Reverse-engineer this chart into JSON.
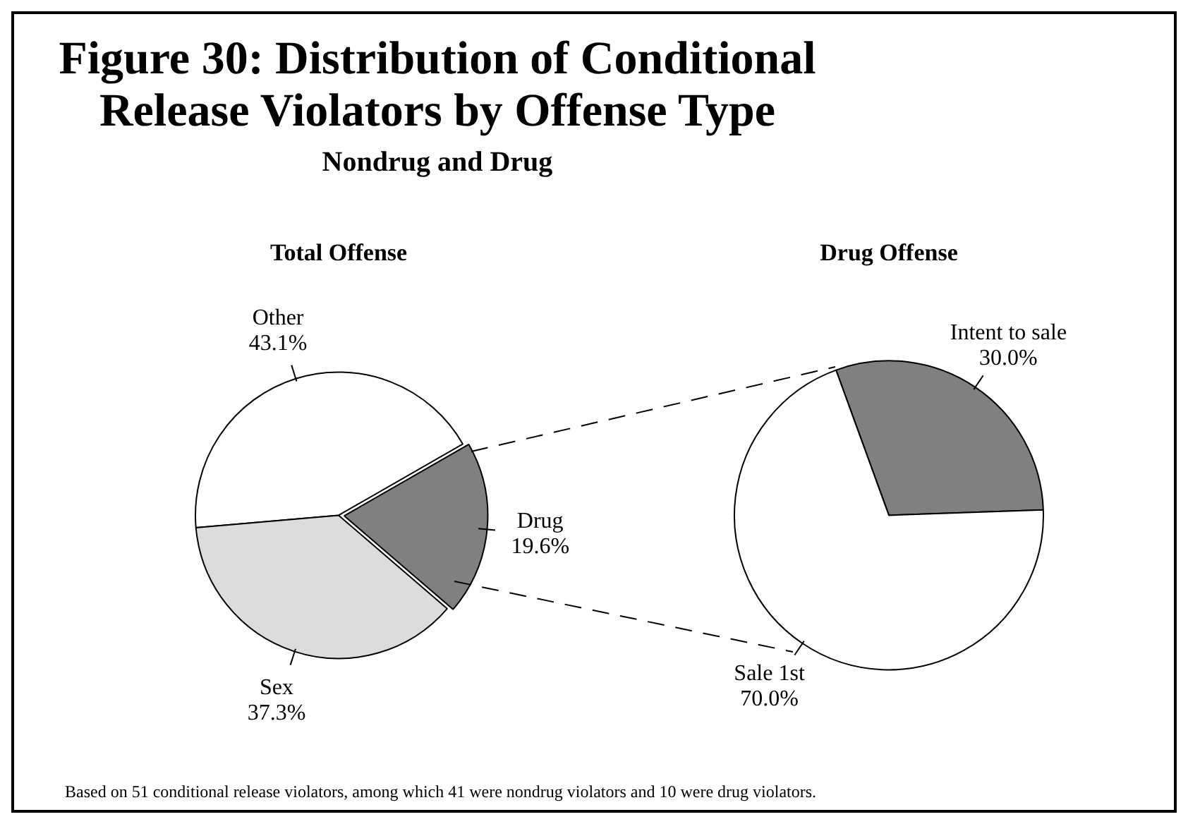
{
  "chart_data": [
    {
      "type": "other",
      "title": "Figure 30: Distribution of Conditional Release Violators by Offense Type",
      "subtitle": "Nondrug and Drug",
      "annotations": [
        "Based on 51 conditional release violators, among which 41 were nondrug violators and 10 were drug violators."
      ]
    },
    {
      "type": "pie",
      "title": "Total Offense",
      "categories": [
        "Other",
        "Drug",
        "Sex"
      ],
      "values": [
        43.1,
        19.6,
        37.3
      ],
      "value_labels": [
        "43.1%",
        "19.6%",
        "37.3%"
      ],
      "colors": [
        "#ffffff",
        "#808080",
        "#dcdcdc"
      ],
      "legend": false
    },
    {
      "type": "pie",
      "title": "Drug Offense",
      "categories": [
        "Intent to sale",
        "Sale 1st"
      ],
      "values": [
        30.0,
        70.0
      ],
      "value_labels": [
        "30.0%",
        "70.0%"
      ],
      "colors": [
        "#808080",
        "#ffffff"
      ],
      "legend": false
    }
  ]
}
